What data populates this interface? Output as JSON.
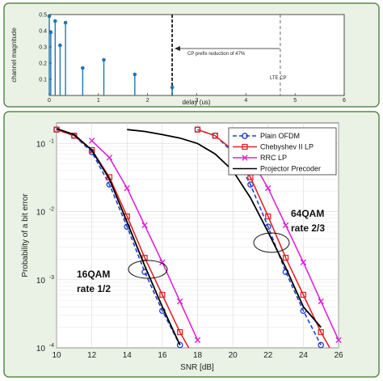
{
  "chart_data": [
    {
      "type": "stem",
      "xlabel": "delay (us)",
      "ylabel": "channel magnitude",
      "xlim": [
        0,
        6
      ],
      "ylim": [
        0,
        0.5
      ],
      "x_ticks": [
        "0",
        "1",
        "2",
        "3",
        "4",
        "5",
        "6"
      ],
      "y_ticks": [
        "0.1",
        "0.2",
        "0.3",
        "0.4",
        "0.5"
      ],
      "stems": [
        {
          "x": 0.0,
          "y": 0.49
        },
        {
          "x": 0.03,
          "y": 0.39
        },
        {
          "x": 0.12,
          "y": 0.46
        },
        {
          "x": 0.22,
          "y": 0.31
        },
        {
          "x": 0.33,
          "y": 0.45
        },
        {
          "x": 0.68,
          "y": 0.17
        },
        {
          "x": 1.11,
          "y": 0.22
        },
        {
          "x": 1.74,
          "y": 0.13
        },
        {
          "x": 2.5,
          "y": 0.05
        }
      ],
      "lines": [
        {
          "x": 2.5,
          "style": "dashed-bold"
        },
        {
          "x": 4.7,
          "style": "dashed"
        }
      ],
      "annotations": {
        "cp_reduction": "CP prefix reduction of 47%",
        "lte_cp": "LTE CP"
      },
      "colors": {
        "stem": "#1f77b4"
      }
    },
    {
      "type": "line",
      "xlabel": "SNR [dB]",
      "ylabel": "Probability of a bit error",
      "xlim": [
        10,
        26
      ],
      "ylim": [
        0.0001,
        0.2
      ],
      "yscale": "log",
      "grid": true,
      "x_ticks": [
        "10",
        "12",
        "14",
        "16",
        "18",
        "20",
        "22",
        "24",
        "26"
      ],
      "y_ticks": [
        {
          "base": "10",
          "exp": "-1",
          "value": 0.1
        },
        {
          "base": "10",
          "exp": "-2",
          "value": 0.01
        },
        {
          "base": "10",
          "exp": "-3",
          "value": 0.001
        },
        {
          "base": "10",
          "exp": "-4",
          "value": 0.0001
        }
      ],
      "legend_position": "top-right",
      "series": [
        {
          "name": "Plain OFDM",
          "color": "#1f3fd6",
          "dash": true,
          "marker": "circle",
          "segments": [
            [
              [
                10,
                0.16
              ],
              [
                11,
                0.13
              ],
              [
                12,
                0.075
              ],
              [
                13,
                0.025
              ],
              [
                14,
                0.006
              ],
              [
                15,
                0.0013
              ],
              [
                16,
                0.00035
              ],
              [
                17,
                0.00011
              ]
            ],
            [
              [
                18,
                0.16
              ],
              [
                19,
                0.13
              ],
              [
                20,
                0.075
              ],
              [
                21,
                0.025
              ],
              [
                22,
                0.006
              ],
              [
                23,
                0.0013
              ],
              [
                24,
                0.00035
              ],
              [
                25,
                0.00011
              ]
            ]
          ]
        },
        {
          "name": "Chebyshev II LP",
          "color": "#e0252b",
          "dash": false,
          "marker": "square",
          "segments": [
            [
              [
                10,
                0.16
              ],
              [
                11,
                0.13
              ],
              [
                12,
                0.08
              ],
              [
                13,
                0.032
              ],
              [
                14,
                0.0085
              ],
              [
                15,
                0.0021
              ],
              [
                16,
                0.0006
              ],
              [
                17,
                0.00017
              ],
              [
                17.5,
                0.0001
              ]
            ],
            [
              [
                18,
                0.16
              ],
              [
                19,
                0.13
              ],
              [
                20,
                0.08
              ],
              [
                21,
                0.032
              ],
              [
                22,
                0.0085
              ],
              [
                23,
                0.0021
              ],
              [
                24,
                0.0006
              ],
              [
                25,
                0.00017
              ],
              [
                25.5,
                0.0001
              ]
            ]
          ]
        },
        {
          "name": "RRC LP",
          "color": "#e023d6",
          "dash": false,
          "marker": "x",
          "segments": [
            [
              [
                12,
                0.11
              ],
              [
                13,
                0.062
              ],
              [
                14,
                0.022
              ],
              [
                15,
                0.0063
              ],
              [
                16,
                0.0018
              ],
              [
                17,
                0.00048
              ],
              [
                18,
                0.00013
              ]
            ],
            [
              [
                20,
                0.11
              ],
              [
                21,
                0.062
              ],
              [
                22,
                0.022
              ],
              [
                23,
                0.0063
              ],
              [
                24,
                0.0018
              ],
              [
                25,
                0.00048
              ],
              [
                26,
                0.00013
              ]
            ]
          ]
        },
        {
          "name": "Projector Precoder",
          "color": "#000000",
          "dash": false,
          "marker": "none",
          "segments": [
            [
              [
                10,
                0.165
              ],
              [
                11,
                0.135
              ],
              [
                12,
                0.08
              ],
              [
                13,
                0.03
              ],
              [
                14,
                0.007
              ],
              [
                15,
                0.0016
              ],
              [
                16,
                0.0004
              ],
              [
                17,
                0.00011
              ]
            ],
            [
              [
                14,
                0.16
              ],
              [
                15,
                0.15
              ],
              [
                16,
                0.135
              ],
              [
                17,
                0.12
              ],
              [
                18,
                0.1
              ],
              [
                19,
                0.07
              ],
              [
                20,
                0.04
              ],
              [
                21,
                0.016
              ],
              [
                22,
                0.005
              ],
              [
                23,
                0.0015
              ],
              [
                24,
                0.0004
              ],
              [
                25,
                0.0002
              ]
            ]
          ]
        }
      ],
      "annotations": {
        "qam16": "16QAM",
        "rate16": "rate 1/2",
        "qam64": "64QAM",
        "rate64": "rate 2/3"
      }
    }
  ]
}
